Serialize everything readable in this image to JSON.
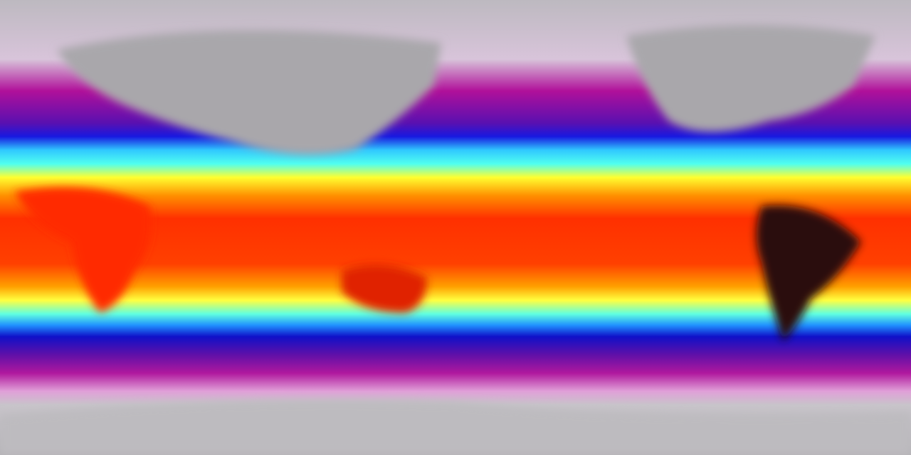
{
  "map": {
    "projection": "equirectangular",
    "colormap": [
      "#b8b4bc",
      "#d9c8dc",
      "#c0109a",
      "#8a0ca0",
      "#1010d0",
      "#1a8cff",
      "#40f0f0",
      "#ffff30",
      "#ffb000",
      "#ff3000",
      "#e01000",
      "#300000"
    ],
    "land_ice_color": "#a8a6aa",
    "hot_land_color": "#2a0a0a"
  }
}
